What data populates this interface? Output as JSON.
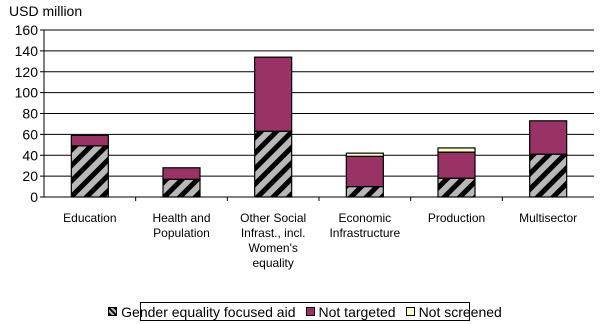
{
  "chart_data": {
    "type": "bar",
    "stacked": true,
    "ylabel": "USD million",
    "ylim": [
      0,
      160
    ],
    "yticks": [
      "0",
      "20",
      "40",
      "60",
      "80",
      "100",
      "120",
      "140",
      "160"
    ],
    "grid": true,
    "legend_position": "bottom",
    "categories": [
      [
        "Education"
      ],
      [
        "Health and",
        "Population"
      ],
      [
        "Other Social",
        "Infrast., incl.",
        "Women's",
        "equality"
      ],
      [
        "Economic",
        "Infrastructure"
      ],
      [
        "Production"
      ],
      [
        "Multisector"
      ]
    ],
    "series": [
      {
        "name": "Gender equality focused aid",
        "values": [
          49,
          17,
          63,
          10,
          18,
          41
        ],
        "color": "#b8b8b8",
        "pattern": "diagonal-hatch"
      },
      {
        "name": "Not targeted",
        "values": [
          10,
          11,
          71,
          29,
          25,
          32
        ],
        "color": "#993366"
      },
      {
        "name": "Not screened",
        "values": [
          0,
          0,
          0,
          3,
          4,
          0
        ],
        "color": "#ffffcc"
      }
    ]
  }
}
